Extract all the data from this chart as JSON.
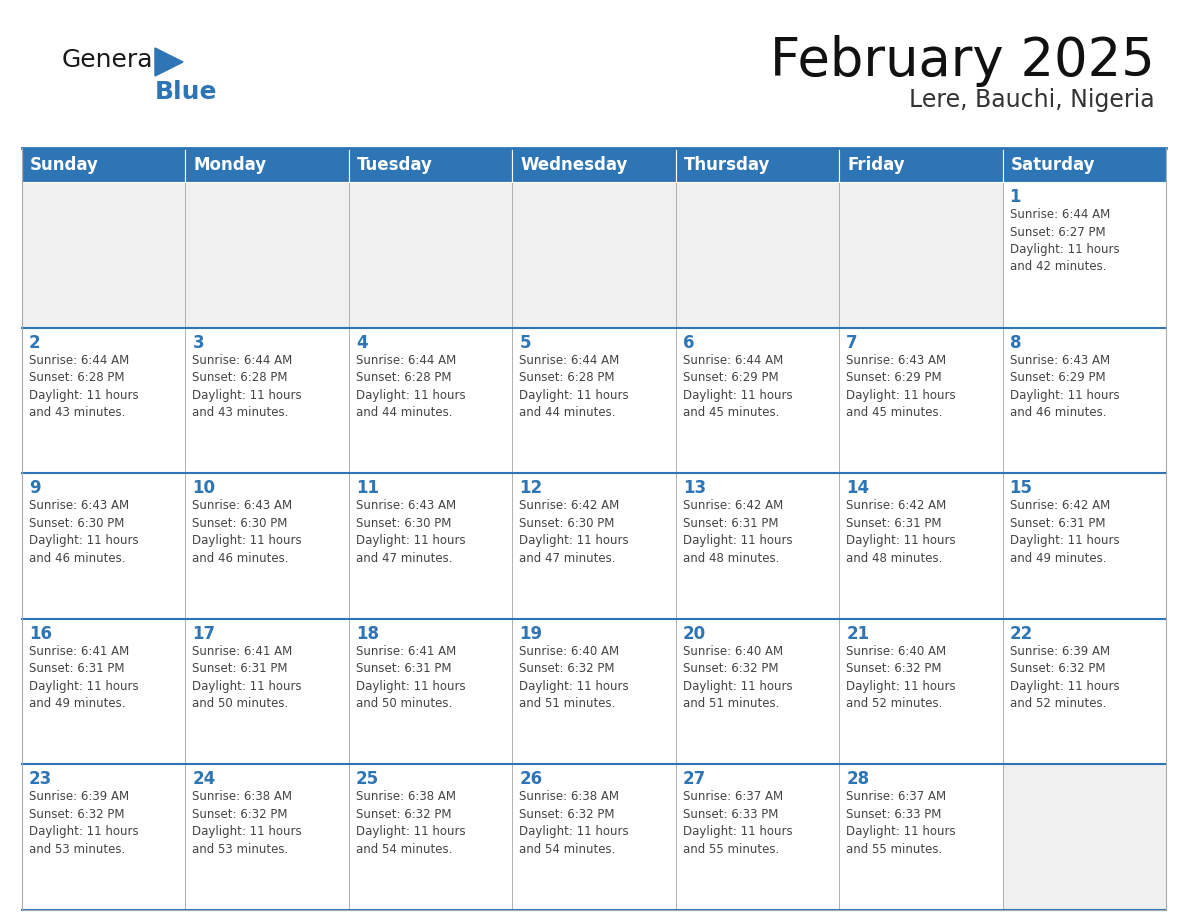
{
  "title": "February 2025",
  "subtitle": "Lere, Bauchi, Nigeria",
  "header_color": "#2E75B6",
  "header_text_color": "#FFFFFF",
  "days_of_week": [
    "Sunday",
    "Monday",
    "Tuesday",
    "Wednesday",
    "Thursday",
    "Friday",
    "Saturday"
  ],
  "cell_bg_color": "#FFFFFF",
  "empty_cell_bg": "#F0F0F0",
  "cell_border_color": "#AAAAAA",
  "day_number_color": "#2E75B6",
  "info_text_color": "#444444",
  "logo_general_color": "#1A1A1A",
  "logo_blue_color": "#2E75B6",
  "weeks": [
    [
      {
        "day": null,
        "info": ""
      },
      {
        "day": null,
        "info": ""
      },
      {
        "day": null,
        "info": ""
      },
      {
        "day": null,
        "info": ""
      },
      {
        "day": null,
        "info": ""
      },
      {
        "day": null,
        "info": ""
      },
      {
        "day": 1,
        "info": "Sunrise: 6:44 AM\nSunset: 6:27 PM\nDaylight: 11 hours\nand 42 minutes."
      }
    ],
    [
      {
        "day": 2,
        "info": "Sunrise: 6:44 AM\nSunset: 6:28 PM\nDaylight: 11 hours\nand 43 minutes."
      },
      {
        "day": 3,
        "info": "Sunrise: 6:44 AM\nSunset: 6:28 PM\nDaylight: 11 hours\nand 43 minutes."
      },
      {
        "day": 4,
        "info": "Sunrise: 6:44 AM\nSunset: 6:28 PM\nDaylight: 11 hours\nand 44 minutes."
      },
      {
        "day": 5,
        "info": "Sunrise: 6:44 AM\nSunset: 6:28 PM\nDaylight: 11 hours\nand 44 minutes."
      },
      {
        "day": 6,
        "info": "Sunrise: 6:44 AM\nSunset: 6:29 PM\nDaylight: 11 hours\nand 45 minutes."
      },
      {
        "day": 7,
        "info": "Sunrise: 6:43 AM\nSunset: 6:29 PM\nDaylight: 11 hours\nand 45 minutes."
      },
      {
        "day": 8,
        "info": "Sunrise: 6:43 AM\nSunset: 6:29 PM\nDaylight: 11 hours\nand 46 minutes."
      }
    ],
    [
      {
        "day": 9,
        "info": "Sunrise: 6:43 AM\nSunset: 6:30 PM\nDaylight: 11 hours\nand 46 minutes."
      },
      {
        "day": 10,
        "info": "Sunrise: 6:43 AM\nSunset: 6:30 PM\nDaylight: 11 hours\nand 46 minutes."
      },
      {
        "day": 11,
        "info": "Sunrise: 6:43 AM\nSunset: 6:30 PM\nDaylight: 11 hours\nand 47 minutes."
      },
      {
        "day": 12,
        "info": "Sunrise: 6:42 AM\nSunset: 6:30 PM\nDaylight: 11 hours\nand 47 minutes."
      },
      {
        "day": 13,
        "info": "Sunrise: 6:42 AM\nSunset: 6:31 PM\nDaylight: 11 hours\nand 48 minutes."
      },
      {
        "day": 14,
        "info": "Sunrise: 6:42 AM\nSunset: 6:31 PM\nDaylight: 11 hours\nand 48 minutes."
      },
      {
        "day": 15,
        "info": "Sunrise: 6:42 AM\nSunset: 6:31 PM\nDaylight: 11 hours\nand 49 minutes."
      }
    ],
    [
      {
        "day": 16,
        "info": "Sunrise: 6:41 AM\nSunset: 6:31 PM\nDaylight: 11 hours\nand 49 minutes."
      },
      {
        "day": 17,
        "info": "Sunrise: 6:41 AM\nSunset: 6:31 PM\nDaylight: 11 hours\nand 50 minutes."
      },
      {
        "day": 18,
        "info": "Sunrise: 6:41 AM\nSunset: 6:31 PM\nDaylight: 11 hours\nand 50 minutes."
      },
      {
        "day": 19,
        "info": "Sunrise: 6:40 AM\nSunset: 6:32 PM\nDaylight: 11 hours\nand 51 minutes."
      },
      {
        "day": 20,
        "info": "Sunrise: 6:40 AM\nSunset: 6:32 PM\nDaylight: 11 hours\nand 51 minutes."
      },
      {
        "day": 21,
        "info": "Sunrise: 6:40 AM\nSunset: 6:32 PM\nDaylight: 11 hours\nand 52 minutes."
      },
      {
        "day": 22,
        "info": "Sunrise: 6:39 AM\nSunset: 6:32 PM\nDaylight: 11 hours\nand 52 minutes."
      }
    ],
    [
      {
        "day": 23,
        "info": "Sunrise: 6:39 AM\nSunset: 6:32 PM\nDaylight: 11 hours\nand 53 minutes."
      },
      {
        "day": 24,
        "info": "Sunrise: 6:38 AM\nSunset: 6:32 PM\nDaylight: 11 hours\nand 53 minutes."
      },
      {
        "day": 25,
        "info": "Sunrise: 6:38 AM\nSunset: 6:32 PM\nDaylight: 11 hours\nand 54 minutes."
      },
      {
        "day": 26,
        "info": "Sunrise: 6:38 AM\nSunset: 6:32 PM\nDaylight: 11 hours\nand 54 minutes."
      },
      {
        "day": 27,
        "info": "Sunrise: 6:37 AM\nSunset: 6:33 PM\nDaylight: 11 hours\nand 55 minutes."
      },
      {
        "day": 28,
        "info": "Sunrise: 6:37 AM\nSunset: 6:33 PM\nDaylight: 11 hours\nand 55 minutes."
      },
      {
        "day": null,
        "info": ""
      }
    ]
  ]
}
